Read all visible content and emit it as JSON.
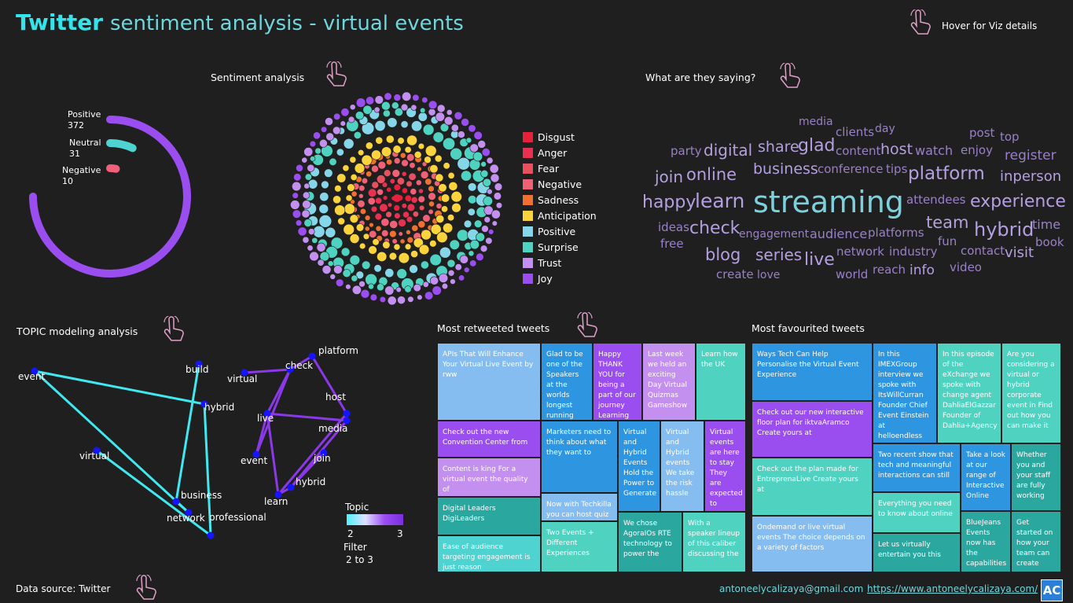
{
  "header": {
    "title_bold": "Twitter",
    "title_rest": "sentiment analysis - virtual events",
    "hover_text": "Hover for Viz details"
  },
  "sections": {
    "sentiment": "Sentiment analysis",
    "saying": "What are they saying?",
    "topic": "TOPIC modeling analysis",
    "retweeted": "Most retweeted tweets",
    "favourited": "Most favourited tweets"
  },
  "donut": {
    "positive_label": "Positive",
    "positive_value": "372",
    "neutral_label": "Neutral",
    "neutral_value": "31",
    "negative_label": "Negative",
    "negative_value": "10",
    "positive_color": "#9b4ef0",
    "neutral_color": "#4fd3d0",
    "negative_color": "#f0607a"
  },
  "legend": [
    {
      "label": "Disgust",
      "color": "#e8203c"
    },
    {
      "label": "Anger",
      "color": "#e83050"
    },
    {
      "label": "Fear",
      "color": "#e85060"
    },
    {
      "label": "Negative",
      "color": "#f06076"
    },
    {
      "label": "Sadness",
      "color": "#f07030"
    },
    {
      "label": "Anticipation",
      "color": "#fbd33c"
    },
    {
      "label": "Positive",
      "color": "#86d6ea"
    },
    {
      "label": "Surprise",
      "color": "#4fd3c0"
    },
    {
      "label": "Trust",
      "color": "#c490f0"
    },
    {
      "label": "Joy",
      "color": "#9b4ef0"
    }
  ],
  "wordcloud": [
    {
      "text": "media"
    },
    {
      "text": "clients"
    },
    {
      "text": "day"
    },
    {
      "text": "post"
    },
    {
      "text": "top"
    },
    {
      "text": "party"
    },
    {
      "text": "digital"
    },
    {
      "text": "share"
    },
    {
      "text": "glad"
    },
    {
      "text": "content"
    },
    {
      "text": "host"
    },
    {
      "text": "watch"
    },
    {
      "text": "enjoy"
    },
    {
      "text": "register"
    },
    {
      "text": "join"
    },
    {
      "text": "online"
    },
    {
      "text": "business"
    },
    {
      "text": "conference"
    },
    {
      "text": "tips"
    },
    {
      "text": "platform"
    },
    {
      "text": "inperson"
    },
    {
      "text": "happy"
    },
    {
      "text": "learn"
    },
    {
      "text": "streaming"
    },
    {
      "text": "attendees"
    },
    {
      "text": "experience"
    },
    {
      "text": "ideas"
    },
    {
      "text": "check"
    },
    {
      "text": "engagement"
    },
    {
      "text": "audience"
    },
    {
      "text": "platforms"
    },
    {
      "text": "team"
    },
    {
      "text": "hybrid"
    },
    {
      "text": "time"
    },
    {
      "text": "free"
    },
    {
      "text": "blog"
    },
    {
      "text": "series"
    },
    {
      "text": "live"
    },
    {
      "text": "network"
    },
    {
      "text": "industry"
    },
    {
      "text": "fun"
    },
    {
      "text": "contact"
    },
    {
      "text": "visit"
    },
    {
      "text": "book"
    },
    {
      "text": "create"
    },
    {
      "text": "love"
    },
    {
      "text": "world"
    },
    {
      "text": "reach"
    },
    {
      "text": "info"
    },
    {
      "text": "video"
    }
  ],
  "topic": {
    "nodes": [
      {
        "label": "event"
      },
      {
        "label": "build"
      },
      {
        "label": "hybrid"
      },
      {
        "label": "virtual"
      },
      {
        "label": "business"
      },
      {
        "label": "network"
      },
      {
        "label": "professional"
      },
      {
        "label": "virtual"
      },
      {
        "label": "check"
      },
      {
        "label": "platform"
      },
      {
        "label": "host"
      },
      {
        "label": "live"
      },
      {
        "label": "media"
      },
      {
        "label": "event"
      },
      {
        "label": "join"
      },
      {
        "label": "hybrid"
      },
      {
        "label": "learn"
      }
    ],
    "legend_title": "Topic",
    "legend_min": "2",
    "legend_max": "3",
    "filter_label": "Filter",
    "filter_value": "2 to 3"
  },
  "retweeted": [
    {
      "text": "APIs That Will Enhance Your Virtual Live Event by rww",
      "color": "#86bdf0"
    },
    {
      "text": "Glad to be one of the Speakers at the worlds longest running",
      "color": "#2e95e0"
    },
    {
      "text": "Happy THANK YOU for being a part of our journey Learning",
      "color": "#9b4ef0"
    },
    {
      "text": "Last week we held an exciting Day Virtual Quizmas Gameshow",
      "color": "#c490f0"
    },
    {
      "text": "Learn how the UK",
      "color": "#4fd3c0"
    },
    {
      "text": "Check out the new Convention Center from",
      "color": "#9b4ef0"
    },
    {
      "text": "Marketers need to think about what they want to",
      "color": "#2e95e0"
    },
    {
      "text": "Virtual and Hybrid Events Hold the Power to Generate",
      "color": "#2e95e0"
    },
    {
      "text": "Virtual and Hybrid events We take the risk hassle",
      "color": "#86bdf0"
    },
    {
      "text": "Virtual events are here to stay They are expected to",
      "color": "#9b4ef0"
    },
    {
      "text": "Content is king For a virtual event the quality of",
      "color": "#c490f0"
    },
    {
      "text": "Now with Techkilla you can host quiz in a virtual",
      "color": "#86bdf0"
    },
    {
      "text": "Digital Leaders DigiLeaders",
      "color": "#2aa8a0"
    },
    {
      "text": "We chose AgoraIOs RTE technology to power the",
      "color": "#2aa8a0"
    },
    {
      "text": "With a speaker lineup of this caliber discussing the",
      "color": "#4fd3c0"
    },
    {
      "text": "Two Events + Different Experiences",
      "color": "#4fd3c0"
    },
    {
      "text": "Ease of audience targeting engagement is just reason",
      "color": "#4fd3d0"
    }
  ],
  "favourited": [
    {
      "text": "Ways Tech Can Help Personalise the Virtual Event Experience",
      "color": "#2e95e0"
    },
    {
      "text": "In this IMEXGroup interview we spoke with ItsWillCurran Founder Chief Event Einstein at helloendless",
      "color": "#2e95e0"
    },
    {
      "text": "In this episode of the eXchange we spoke with change agent DahliaElGazzar Founder of Dahlia+Agency",
      "color": "#4fd3c0"
    },
    {
      "text": "Are you considering a virtual or hybrid corporate event in Find out how you can make it",
      "color": "#4fd3c0"
    },
    {
      "text": "Check out our new interactive floor plan for iktvaAramco Create yours at",
      "color": "#9b4ef0"
    },
    {
      "text": "Check out the plan made for EntreprenaLive Create yours at",
      "color": "#4fd3c0"
    },
    {
      "text": "Two recent show that tech and meaningful interactions can still",
      "color": "#2e95e0"
    },
    {
      "text": "Take a look at our range of Interactive Online",
      "color": "#2e95e0"
    },
    {
      "text": "Whether you and your staff are fully working",
      "color": "#2aa8a0"
    },
    {
      "text": "Everything you need to know about online",
      "color": "#4fd3c0"
    },
    {
      "text": "Ondemand or live virtual events The choice depends on a variety of factors",
      "color": "#86bdf0"
    },
    {
      "text": "Let us virtually entertain you this",
      "color": "#2aa8a0"
    },
    {
      "text": "BlueJeans Events now has the capabilities",
      "color": "#2aa8a0"
    },
    {
      "text": "Get started on how your team can create",
      "color": "#2aa8a0"
    }
  ],
  "footer": {
    "source": "Data source: Twitter",
    "email": "antoneelycalizaya@gmail.com",
    "url": "https://www.antoneelycalizaya.com/",
    "logo": "AC"
  }
}
